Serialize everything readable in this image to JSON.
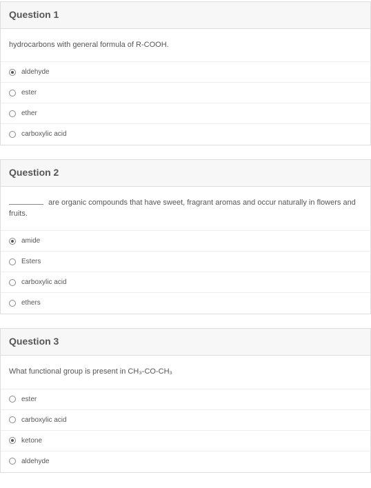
{
  "questions": [
    {
      "title": "Question 1",
      "prompt": "hydrocarbons with general formula of R-COOH.",
      "has_blank": false,
      "options": [
        {
          "label": "aldehyde",
          "selected": true
        },
        {
          "label": "ester",
          "selected": false
        },
        {
          "label": "ether",
          "selected": false
        },
        {
          "label": "carboxylic acid",
          "selected": false
        }
      ]
    },
    {
      "title": "Question 2",
      "prompt": "are organic compounds that have sweet, fragrant aromas and occur naturally in flowers and fruits.",
      "has_blank": true,
      "options": [
        {
          "label": "amide",
          "selected": true
        },
        {
          "label": "Esters",
          "selected": false
        },
        {
          "label": "carboxylic acid",
          "selected": false
        },
        {
          "label": "ethers",
          "selected": false
        }
      ]
    },
    {
      "title": "Question 3",
      "prompt": "What functional group is present in CH₃-CO-CH₃",
      "has_blank": false,
      "options": [
        {
          "label": "ester",
          "selected": false
        },
        {
          "label": "carboxylic acid",
          "selected": false
        },
        {
          "label": "ketone",
          "selected": true
        },
        {
          "label": "aldehyde",
          "selected": false
        }
      ]
    }
  ],
  "colors": {
    "border": "#dddddd",
    "header_bg": "#f7f7f7",
    "text": "#555555",
    "row_border": "#eeeeee"
  }
}
